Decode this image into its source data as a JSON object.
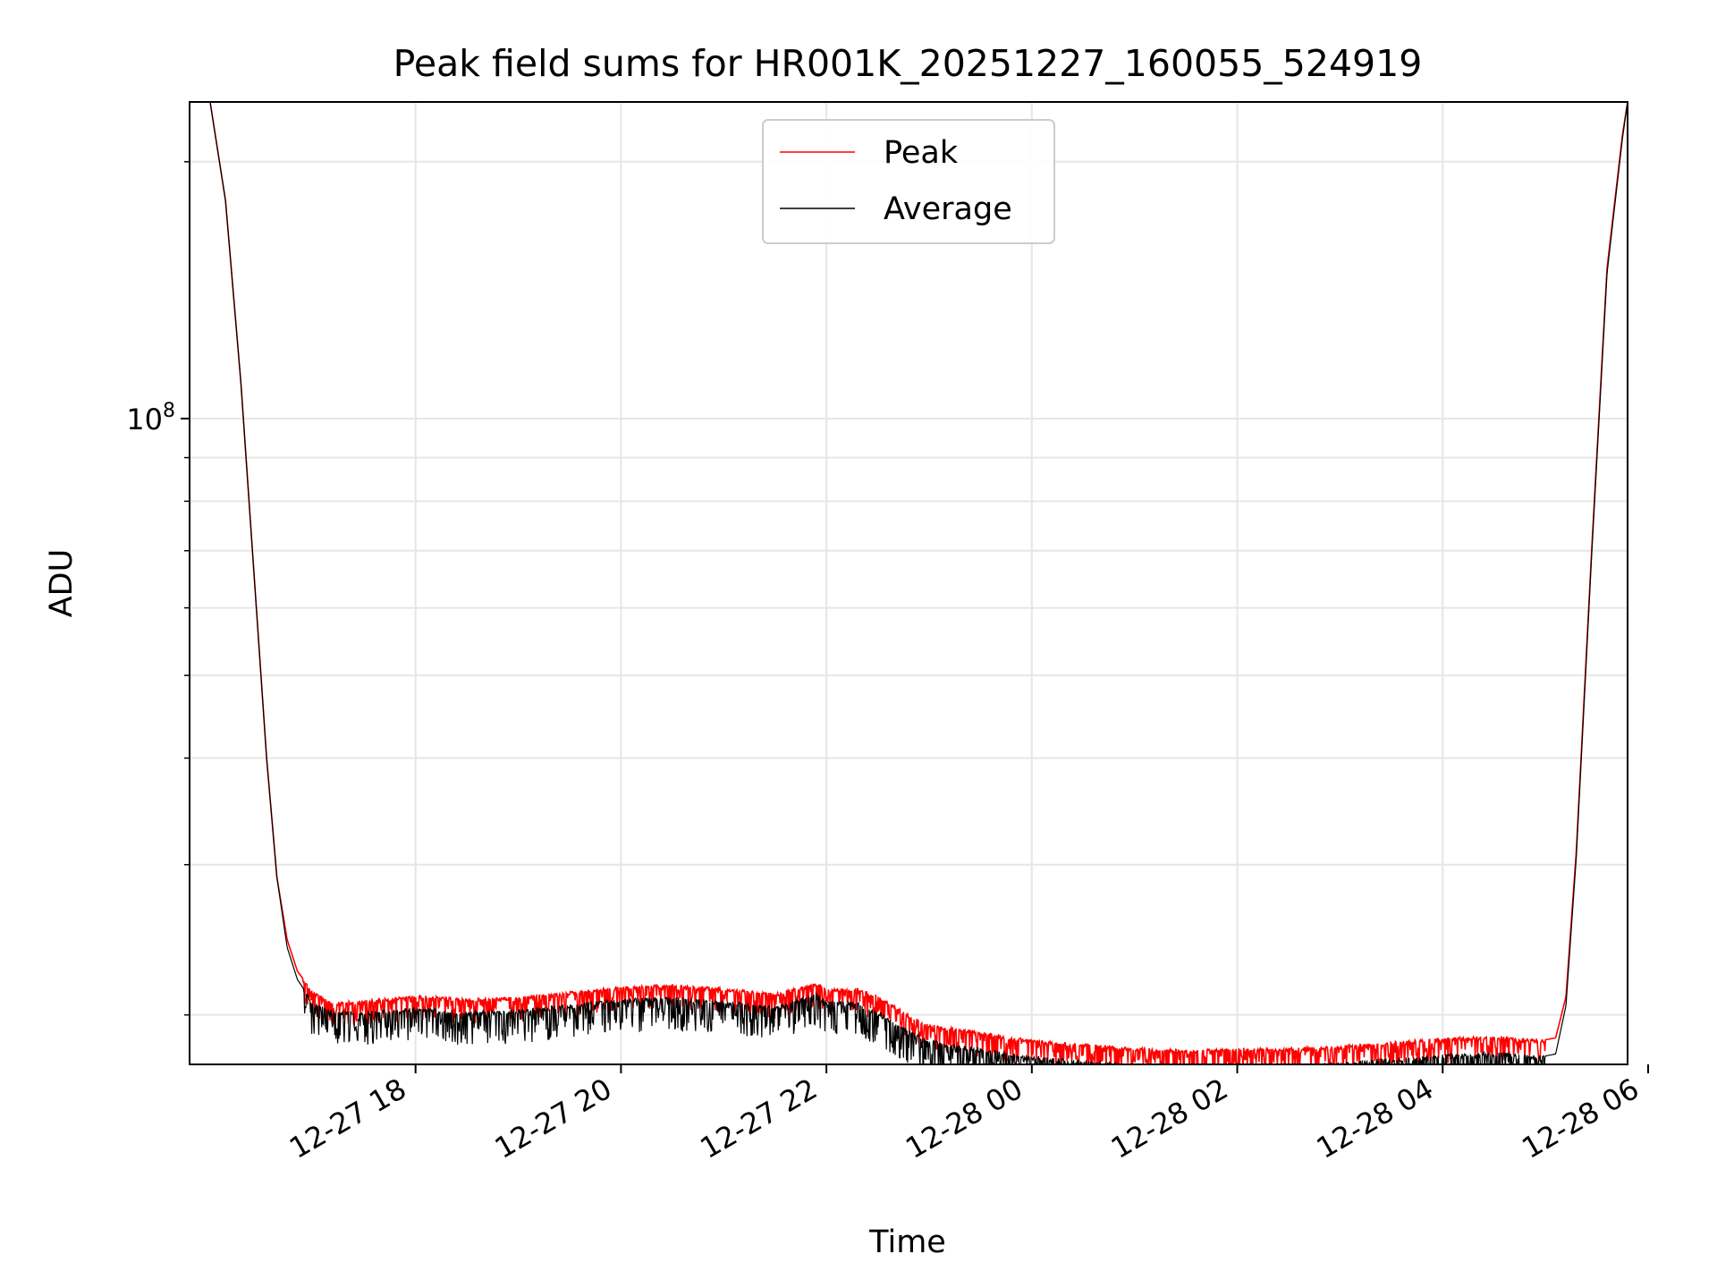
{
  "chart_data": {
    "type": "line",
    "title": "Peak field sums for HR001K_20251227_160055_524919",
    "xlabel": "Time",
    "ylabel": "ADU",
    "yscale": "log",
    "xlim": [
      -2.2,
      11.8
    ],
    "ylim": [
      17500000,
      235000000
    ],
    "x_ticks": [
      {
        "value": 0,
        "label": "12-27 18"
      },
      {
        "value": 2,
        "label": "12-27 20"
      },
      {
        "value": 4,
        "label": "12-27 22"
      },
      {
        "value": 6,
        "label": "12-28 00"
      },
      {
        "value": 8,
        "label": "12-28 02"
      },
      {
        "value": 10,
        "label": "12-28 04"
      },
      {
        "value": 12,
        "label": "12-28 06"
      }
    ],
    "y_major_tick": {
      "value": 100000000,
      "base": "10",
      "exp": "8"
    },
    "y_minor_ticks": [
      20000000,
      30000000,
      40000000,
      50000000,
      60000000,
      70000000,
      80000000,
      90000000,
      200000000
    ],
    "grid": true,
    "legend_position": "top-center",
    "legend": [
      {
        "name": "Peak",
        "color": "#ff0000"
      },
      {
        "name": "Average",
        "color": "#000000"
      }
    ],
    "series": [
      {
        "name": "Peak",
        "color": "#ff0000",
        "noise_amplitude": 0.03,
        "x": [
          -2.0,
          -1.85,
          -1.7,
          -1.55,
          -1.45,
          -1.35,
          -1.25,
          -1.15,
          -1.0,
          -0.8,
          -0.5,
          0.0,
          0.5,
          1.0,
          1.5,
          2.0,
          2.5,
          3.0,
          3.5,
          3.9,
          4.0,
          4.3,
          4.5,
          4.8,
          5.0,
          5.5,
          6.0,
          6.5,
          7.0,
          7.5,
          8.0,
          8.5,
          9.0,
          9.5,
          10.0,
          10.5,
          11.0,
          11.1,
          11.2,
          11.3,
          11.45,
          11.6,
          11.75,
          11.8
        ],
        "values": [
          235000000,
          180000000,
          110000000,
          60000000,
          40000000,
          29000000,
          24500000,
          22500000,
          21300000,
          20700000,
          20800000,
          21100000,
          20900000,
          21000000,
          21300000,
          21600000,
          21700000,
          21500000,
          21200000,
          21800000,
          21500000,
          21500000,
          21100000,
          20000000,
          19500000,
          19100000,
          18700000,
          18500000,
          18300000,
          18200000,
          18300000,
          18300000,
          18400000,
          18600000,
          18800000,
          18900000,
          18700000,
          18800000,
          21000000,
          31000000,
          70000000,
          150000000,
          215000000,
          235000000
        ]
      },
      {
        "name": "Average",
        "color": "#000000",
        "noise_amplitude": 0.04,
        "x": [
          -2.0,
          -1.85,
          -1.7,
          -1.55,
          -1.45,
          -1.35,
          -1.25,
          -1.15,
          -1.0,
          -0.8,
          -0.5,
          0.0,
          0.5,
          1.0,
          1.5,
          2.0,
          2.5,
          3.0,
          3.5,
          3.9,
          4.0,
          4.3,
          4.5,
          4.8,
          5.0,
          5.5,
          6.0,
          6.5,
          7.0,
          7.5,
          8.0,
          8.5,
          9.0,
          9.5,
          10.0,
          10.5,
          11.0,
          11.1,
          11.2,
          11.3,
          11.45,
          11.6,
          11.75,
          11.8
        ],
        "values": [
          235000000,
          180000000,
          110000000,
          60000000,
          40000000,
          29000000,
          24000000,
          22000000,
          20700000,
          20200000,
          20200000,
          20400000,
          20200000,
          20300000,
          20600000,
          20900000,
          21000000,
          20800000,
          20500000,
          21200000,
          20800000,
          20700000,
          20200000,
          19200000,
          18700000,
          18300000,
          17900000,
          17700000,
          17500000,
          17400000,
          17500000,
          17500000,
          17600000,
          17800000,
          18000000,
          18100000,
          17900000,
          18000000,
          20500000,
          30500000,
          69000000,
          148000000,
          213000000,
          235000000
        ]
      }
    ]
  }
}
